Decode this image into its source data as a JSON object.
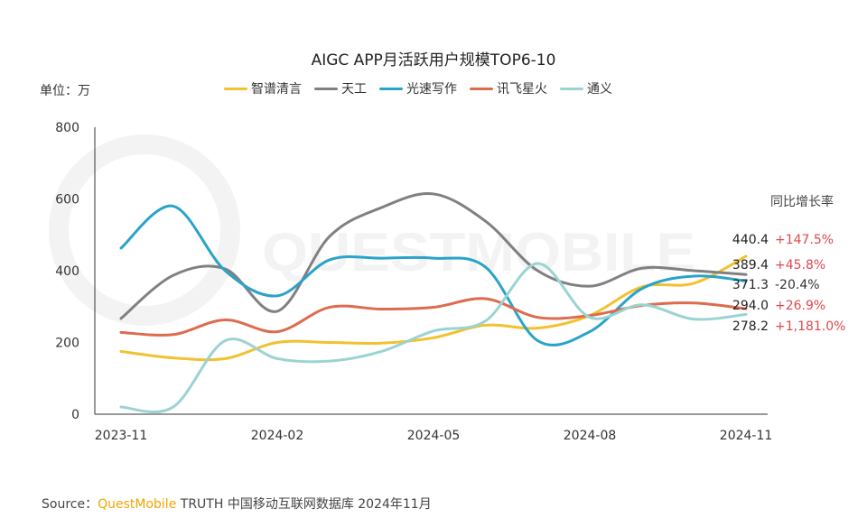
{
  "chart_data": {
    "type": "line",
    "title": "AIGC APP月活跃用户规模TOP6-10",
    "unit_label": "单位：万",
    "x": [
      "2023-11",
      "2023-12",
      "2024-01",
      "2024-02",
      "2024-03",
      "2024-04",
      "2024-05",
      "2024-06",
      "2024-07",
      "2024-08",
      "2024-09",
      "2024-10",
      "2024-11"
    ],
    "x_tick_labels": [
      "2023-11",
      "2024-02",
      "2024-05",
      "2024-08",
      "2024-11"
    ],
    "y_ticks": [
      0,
      200,
      400,
      600,
      800
    ],
    "ylim": [
      0,
      800
    ],
    "grid": false,
    "legend_position": "top",
    "yoy_header": "同比增长率",
    "series": [
      {
        "name": "智谱清言",
        "color": "#f2c12e",
        "values": [
          175,
          157,
          155,
          200,
          200,
          198,
          213,
          248,
          240,
          275,
          355,
          365,
          440.4
        ],
        "end_label": "440.4",
        "yoy": "+147.5%",
        "yoy_color": "#e0474c"
      },
      {
        "name": "天工",
        "color": "#808080",
        "values": [
          267,
          387,
          405,
          287,
          495,
          576,
          614,
          538,
          400,
          357,
          407,
          400,
          389.4
        ],
        "end_label": "389.4",
        "yoy": "+45.8%",
        "yoy_color": "#e0474c"
      },
      {
        "name": "光速写作",
        "color": "#2aa3c9",
        "values": [
          463,
          580,
          400,
          330,
          430,
          435,
          435,
          410,
          205,
          230,
          350,
          385,
          371.3
        ],
        "end_label": "371.3",
        "yoy": "-20.4%",
        "yoy_color": "#333333"
      },
      {
        "name": "讯飞星火",
        "color": "#dd6b4d",
        "values": [
          228,
          222,
          263,
          230,
          298,
          293,
          298,
          322,
          270,
          275,
          303,
          310,
          294.0
        ],
        "end_label": "294.0",
        "yoy": "+26.9%",
        "yoy_color": "#e0474c"
      },
      {
        "name": "通义",
        "color": "#9bd3d3",
        "values": [
          20,
          20,
          205,
          155,
          148,
          175,
          232,
          260,
          420,
          270,
          305,
          265,
          278.2
        ],
        "end_label": "278.2",
        "yoy": "+1,181.0%",
        "yoy_color": "#e0474c"
      }
    ]
  },
  "source": {
    "prefix": "Source：",
    "brand": "QuestMobile",
    "rest": " TRUTH 中国移动互联网数据库 2024年11月"
  },
  "watermark": "QUESTMOBILE"
}
